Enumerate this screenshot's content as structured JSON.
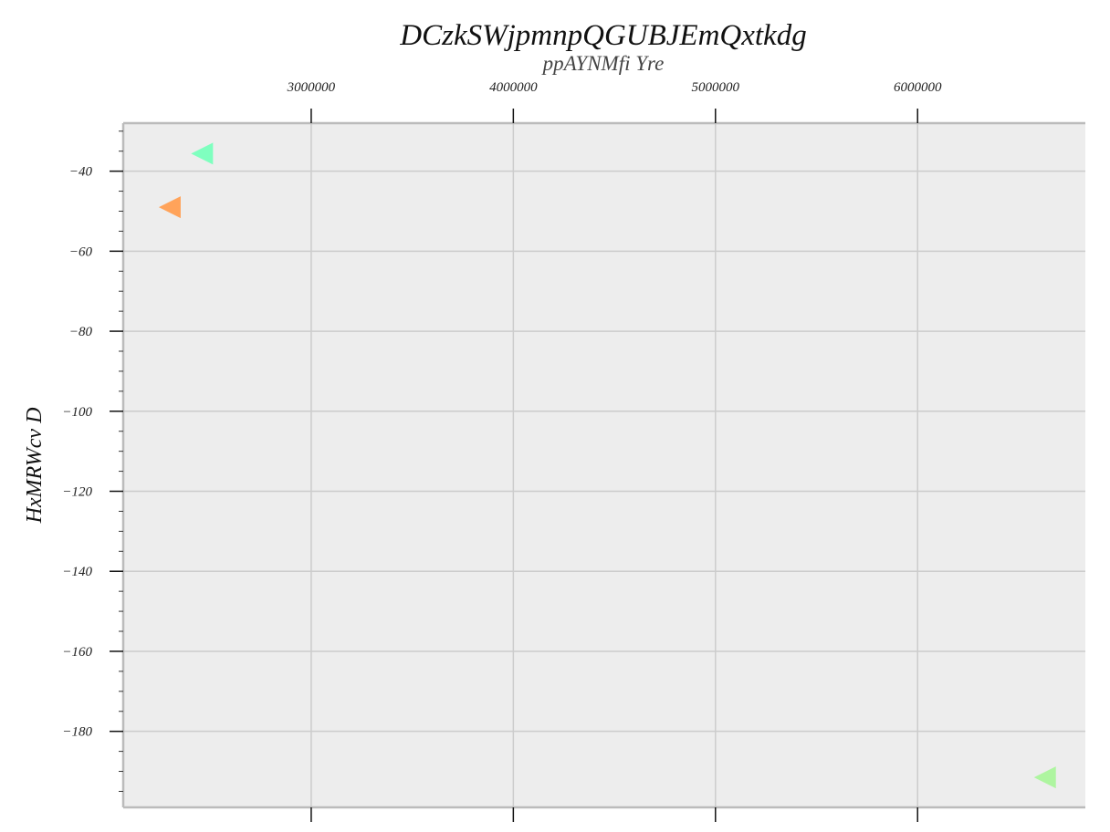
{
  "chart_data": {
    "type": "scatter",
    "title": "DCzkSWjpmnpQGUBJEmQxtkdg",
    "subtitle": "ppAYNMfi Yre",
    "ylabel": "HxMRWcv D",
    "xlabel": "",
    "x_axis_position": "top",
    "grid": true,
    "xlim": [
      2070000,
      6830000
    ],
    "ylim": [
      -199,
      -28
    ],
    "xticks": [
      3000000,
      4000000,
      5000000,
      6000000
    ],
    "xtick_labels": [
      "3000000",
      "4000000",
      "5000000",
      "6000000"
    ],
    "yticks": [
      -40,
      -60,
      -80,
      -100,
      -120,
      -140,
      -160,
      -180
    ],
    "ytick_labels": [
      "−40",
      "−60",
      "−80",
      "−100",
      "−120",
      "−140",
      "−160",
      "−180"
    ],
    "marker": "triangle-left",
    "points": [
      {
        "x": 2460000,
        "y": -35.6,
        "color": "#7fffbf"
      },
      {
        "x": 2300000,
        "y": -49.0,
        "color": "#ffa35a"
      },
      {
        "x": 6630000,
        "y": -191.5,
        "color": "#aef5a0"
      }
    ],
    "colors": {
      "plot_background": "#ededed",
      "grid": "#cccccc",
      "axis": "#bbbbbb"
    }
  }
}
